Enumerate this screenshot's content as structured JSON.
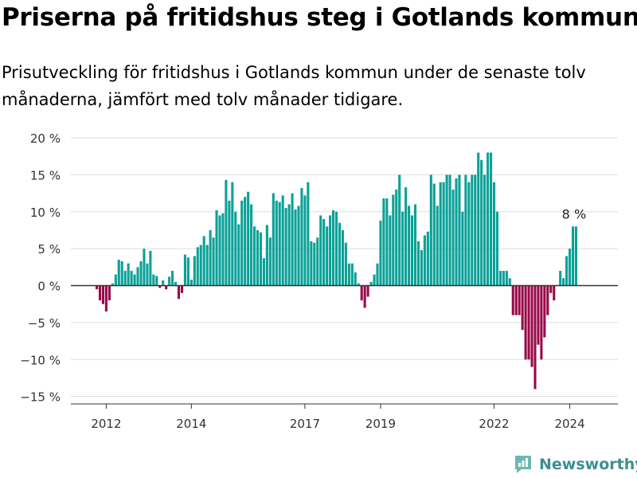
{
  "header": {
    "title": "Priserna på fritidshus steg i Gotlands kommun",
    "subtitle": "Prisutveckling för fritidshus i Gotlands kommun under de senaste tolv månaderna, jämfört med tolv månader tidigare."
  },
  "brand": {
    "name": "Newsworthy",
    "icon": "newsworthy-logo-icon"
  },
  "colors": {
    "positive": "#0aa198",
    "negative": "#990a4a",
    "zero_line": "#333333",
    "grid": "#dddddd"
  },
  "chart_data": {
    "type": "bar",
    "title": "Priserna på fritidshus steg i Gotlands kommun",
    "xlabel": "",
    "ylabel": "",
    "ylim": [
      -16,
      20
    ],
    "yticks": [
      -15,
      -10,
      -5,
      0,
      5,
      10,
      15,
      20
    ],
    "ytick_labels": [
      "−15 %",
      "−10 %",
      "−5 %",
      "0 %",
      "5 %",
      "10 %",
      "15 %",
      "20 %"
    ],
    "xticks": [
      {
        "label": "2012",
        "index": 3
      },
      {
        "label": "2014",
        "index": 30
      },
      {
        "label": "2017",
        "index": 66
      },
      {
        "label": "2019",
        "index": 90
      },
      {
        "label": "2022",
        "index": 126
      },
      {
        "label": "2024",
        "index": 150
      }
    ],
    "grid": true,
    "end_annotation": "8 %",
    "values": [
      -0.5,
      -2.0,
      -2.5,
      -3.5,
      -2.0,
      0.3,
      1.5,
      3.5,
      3.3,
      2.0,
      3.0,
      2.0,
      1.5,
      2.5,
      3.3,
      5.0,
      3.0,
      4.7,
      1.5,
      1.3,
      -0.3,
      0.7,
      -0.5,
      1.2,
      2.0,
      0.5,
      -1.8,
      -1.0,
      4.2,
      3.8,
      0.8,
      4.0,
      5.2,
      5.5,
      6.7,
      5.5,
      7.5,
      6.5,
      10.2,
      9.5,
      9.8,
      14.3,
      11.5,
      14.0,
      10.0,
      8.3,
      11.5,
      12.0,
      12.7,
      11.0,
      8.0,
      7.5,
      7.2,
      3.7,
      8.2,
      6.5,
      12.5,
      11.5,
      11.3,
      12.2,
      10.5,
      11.0,
      12.5,
      10.3,
      10.8,
      13.2,
      12.2,
      14.0,
      6.0,
      5.8,
      6.5,
      9.5,
      9.0,
      8.0,
      9.5,
      10.2,
      10.0,
      8.5,
      7.5,
      5.8,
      3.0,
      3.0,
      1.8,
      0.3,
      -2.0,
      -3.0,
      -1.5,
      0.5,
      1.5,
      3.0,
      8.8,
      11.8,
      11.8,
      9.5,
      12.3,
      13.0,
      15.0,
      10.0,
      13.3,
      10.8,
      9.5,
      11.0,
      6.0,
      4.8,
      6.8,
      7.3,
      15.0,
      13.8,
      10.8,
      14.0,
      14.0,
      15.0,
      15.0,
      13.0,
      14.5,
      15.0,
      10.0,
      15.0,
      14.0,
      15.0,
      15.0,
      18.0,
      17.0,
      15.0,
      18.0,
      18.0,
      14.0,
      10.0,
      2.0,
      2.0,
      2.0,
      1.0,
      -4.0,
      -4.0,
      -4.0,
      -6.0,
      -10.0,
      -10.0,
      -11.0,
      -14.0,
      -8.0,
      -10.0,
      -7.0,
      -4.0,
      -1.0,
      -2.0,
      0.0,
      2.0,
      1.0,
      4.0,
      5.0,
      8.0,
      8.0
    ]
  }
}
